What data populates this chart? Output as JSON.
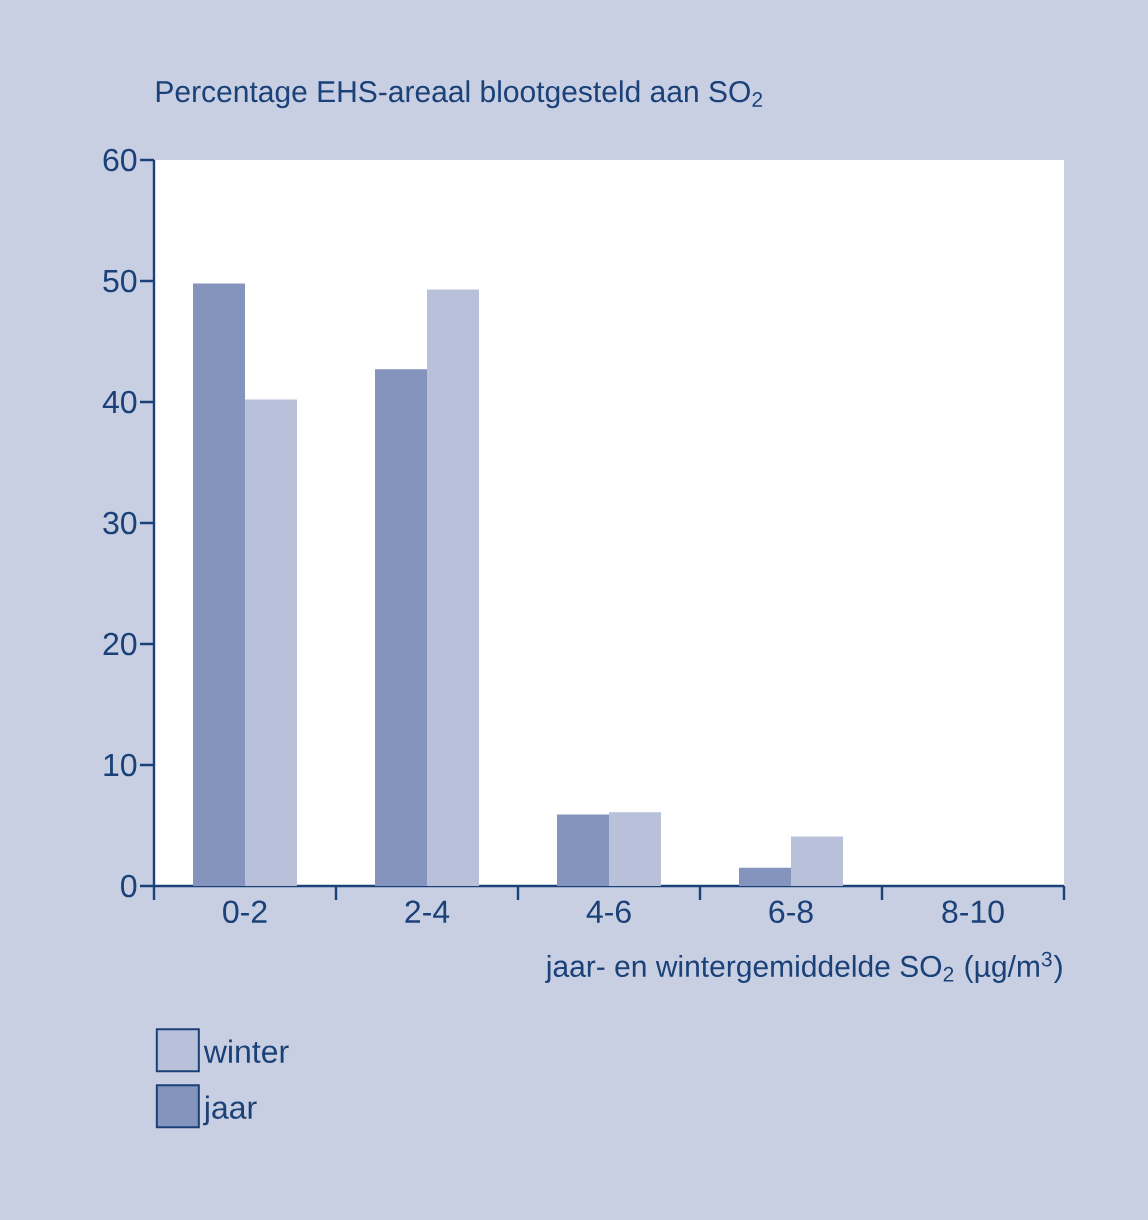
{
  "chart_data": {
    "type": "bar",
    "title": "Percentage EHS-areaal blootgesteld aan SO$_{2}$",
    "xlabel": "jaar- en wintergemiddelde SO$_{2}$ (µg/m$^{3}$)",
    "categories": [
      "0-2",
      "2-4",
      "4-6",
      "6-8",
      "8-10"
    ],
    "series": [
      {
        "name": "jaar",
        "color": "#8594bd",
        "values": [
          49.8,
          42.7,
          5.9,
          1.5,
          0
        ]
      },
      {
        "name": "winter",
        "color": "#b9c0da",
        "values": [
          40.2,
          49.3,
          6.1,
          4.1,
          null
        ]
      }
    ],
    "ylim": [
      0,
      60
    ],
    "yticks": [
      0,
      10,
      20,
      30,
      40,
      50,
      60
    ],
    "legend": "bottom left",
    "grid": false
  }
}
